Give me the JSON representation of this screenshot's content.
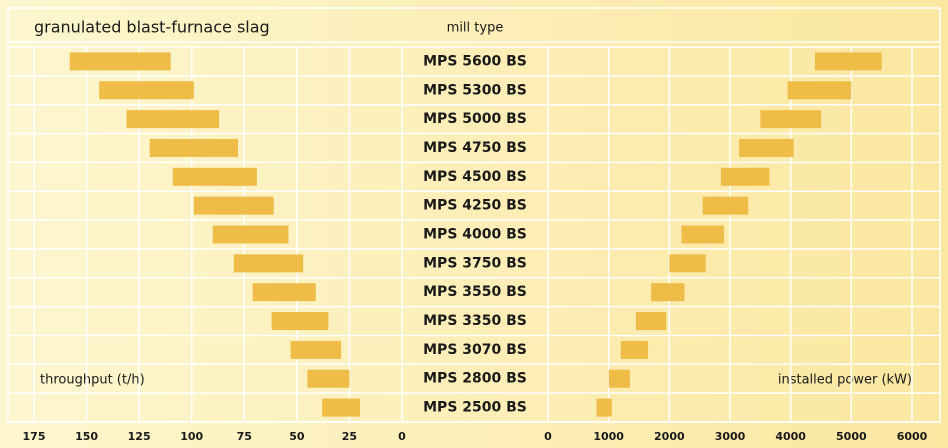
{
  "chart_data": {
    "type": "butterfly-range",
    "title": "granulated blast-furnace slag",
    "category_label": "mill type",
    "categories": [
      "MPS 5600 BS",
      "MPS 5300 BS",
      "MPS 5000 BS",
      "MPS 4750 BS",
      "MPS 4500 BS",
      "MPS 4250 BS",
      "MPS 4000 BS",
      "MPS 3750 BS",
      "MPS 3550 BS",
      "MPS 3350 BS",
      "MPS 3070 BS",
      "MPS 2800 BS",
      "MPS 2500 BS"
    ],
    "left": {
      "label": "throughput (t/h)",
      "xlim": [
        175,
        0
      ],
      "xticks": [
        175,
        150,
        125,
        100,
        75,
        50,
        25,
        0
      ],
      "color": "#f0bc48",
      "values": [
        [
          158,
          110
        ],
        [
          144,
          99
        ],
        [
          131,
          87
        ],
        [
          120,
          78
        ],
        [
          109,
          69
        ],
        [
          99,
          61
        ],
        [
          90,
          54
        ],
        [
          80,
          47
        ],
        [
          71,
          41
        ],
        [
          62,
          35
        ],
        [
          53,
          29
        ],
        [
          45,
          25
        ],
        [
          38,
          20
        ]
      ]
    },
    "right": {
      "label": "installed power (kW)",
      "xlim": [
        0,
        6000
      ],
      "xticks": [
        0,
        1000,
        2000,
        3000,
        4000,
        5000,
        6000
      ],
      "color": "#f0bc48",
      "values": [
        [
          4400,
          5500
        ],
        [
          3950,
          5000
        ],
        [
          3500,
          4500
        ],
        [
          3150,
          4050
        ],
        [
          2850,
          3650
        ],
        [
          2550,
          3300
        ],
        [
          2200,
          2900
        ],
        [
          2000,
          2600
        ],
        [
          1700,
          2250
        ],
        [
          1450,
          1950
        ],
        [
          1200,
          1650
        ],
        [
          1000,
          1350
        ],
        [
          800,
          1050
        ]
      ]
    },
    "grid": true
  }
}
